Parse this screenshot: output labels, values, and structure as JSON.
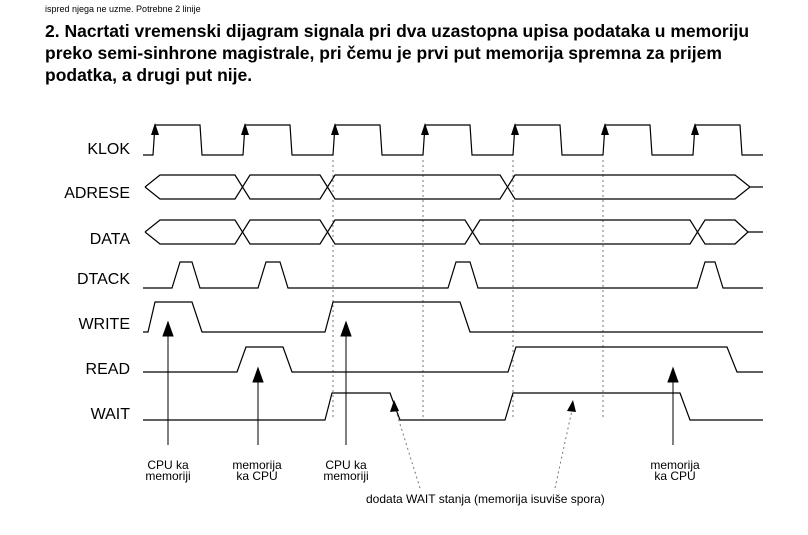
{
  "header": {
    "intro_line": "ispred njega ne uzme. Potrebne 2 linije"
  },
  "question": {
    "text": "2. Nacrtati vremenski dijagram signala pri dva uzastopna upisa podataka u memoriju preko semi-sinhrone magistrale, pri čemu je prvi put memorija spremna za prijem podatka, a drugi put nije."
  },
  "diagram": {
    "signals": [
      "KLOK",
      "ADRESE",
      "DATA",
      "DTACK",
      "WRITE",
      "READ",
      "WAIT"
    ],
    "annotations": [
      {
        "lines": [
          "CPU ka",
          "memoriji"
        ]
      },
      {
        "lines": [
          "memorija",
          "ka CPU"
        ]
      },
      {
        "lines": [
          "CPU ka",
          "memoriji"
        ]
      },
      {
        "lines": [
          "memorija",
          "ka CPU"
        ]
      }
    ],
    "note": "dodata WAIT stanja (memorija isuviše spora)"
  }
}
